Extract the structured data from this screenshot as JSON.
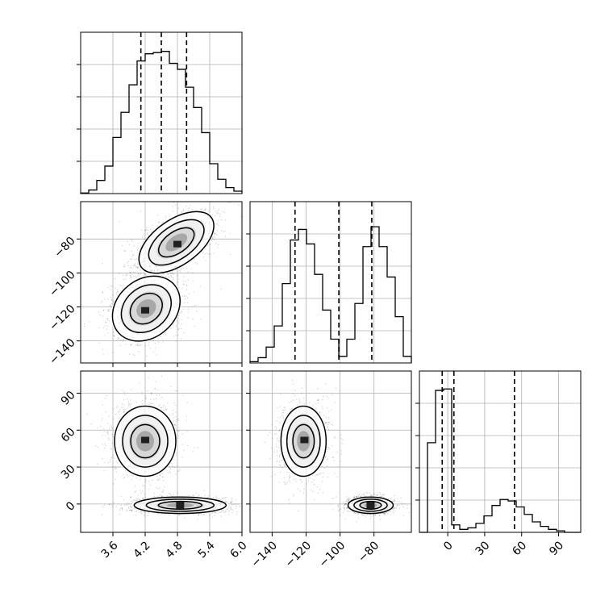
{
  "chart_data": {
    "type": "corner",
    "grid": true,
    "parameters": [
      {
        "ticks": [
          3.6,
          4.2,
          4.8,
          5.4,
          6.0
        ],
        "tick_labels": [
          "3.6",
          "4.2",
          "4.8",
          "5.4",
          "6.0"
        ],
        "range": [
          3.0,
          6.0
        ]
      },
      {
        "ticks": [
          -140,
          -120,
          -100,
          -80
        ],
        "tick_labels": [
          "−140",
          "−120",
          "−100",
          "−80"
        ],
        "range": [
          -153,
          -58
        ]
      },
      {
        "ticks": [
          0,
          30,
          60,
          90
        ],
        "tick_labels": [
          "0",
          "30",
          "60",
          "90"
        ],
        "range": [
          -23,
          108
        ]
      }
    ],
    "histograms": [
      {
        "param": 0,
        "bin_edges": [
          3.0,
          3.15,
          3.3,
          3.45,
          3.6,
          3.75,
          3.9,
          4.05,
          4.2,
          4.35,
          4.5,
          4.65,
          4.8,
          4.95,
          5.1,
          5.25,
          5.4,
          5.55,
          5.7,
          5.85,
          6.0
        ],
        "counts": [
          0.5,
          3,
          11,
          23,
          47,
          68,
          91,
          111,
          117,
          118,
          119,
          109,
          104,
          89,
          72,
          51,
          25,
          12,
          5,
          2
        ],
        "ymax": 135,
        "quantiles": [
          4.12,
          4.5,
          4.97
        ]
      },
      {
        "param": 1,
        "bin_edges": [
          -153,
          -148.25,
          -143.5,
          -138.75,
          -134,
          -129.25,
          -124.5,
          -119.75,
          -115,
          -110.25,
          -105.5,
          -100.75,
          -96,
          -91.25,
          -86.5,
          -81.75,
          -77,
          -72.25,
          -67.5,
          -62.75,
          -58
        ],
        "counts": [
          1,
          4,
          12,
          28,
          60,
          93,
          101,
          90,
          67,
          40,
          18,
          5,
          18,
          45,
          88,
          103,
          88,
          65,
          35,
          5
        ],
        "ymax": 122,
        "quantiles": [
          -126.5,
          -100.7,
          -81.3
        ]
      },
      {
        "param": 2,
        "bin_edges": [
          -23,
          -16.45,
          -9.9,
          -3.35,
          3.2,
          9.75,
          16.3,
          22.85,
          29.4,
          35.95,
          42.5,
          49.05,
          55.6,
          62.15,
          68.7,
          75.25,
          81.8,
          88.35,
          94.9,
          101.45,
          108
        ],
        "counts": [
          0,
          60,
          95,
          96,
          5,
          2,
          3,
          6,
          11,
          18,
          22,
          21,
          17,
          12,
          7,
          4,
          2,
          1,
          0,
          0
        ],
        "ymax": 108,
        "quantiles": [
          -4.5,
          5.0,
          54.2
        ]
      }
    ],
    "scatter_panels": [
      {
        "x_param": 0,
        "y_param": 1,
        "clusters": [
          {
            "center": [
              4.78,
              -82
            ],
            "sd": [
              0.42,
              7
            ],
            "angle_deg": 35,
            "dense_core": [
              4.8,
              -83
            ]
          },
          {
            "center": [
              4.22,
              -121
            ],
            "sd": [
              0.36,
              9
            ],
            "angle_deg": 40,
            "dense_core": [
              4.2,
              -122
            ]
          }
        ]
      },
      {
        "x_param": 0,
        "y_param": 2,
        "clusters": [
          {
            "center": [
              4.2,
              51
            ],
            "sd": [
              0.3,
              15
            ],
            "angle_deg": 0,
            "dense_core": [
              4.2,
              52
            ]
          },
          {
            "center": [
              4.85,
              -1
            ],
            "sd": [
              0.45,
              3.5
            ],
            "angle_deg": 0,
            "dense_core": [
              4.85,
              -1
            ]
          }
        ]
      },
      {
        "x_param": 1,
        "y_param": 2,
        "clusters": [
          {
            "center": [
              -121.5,
              51
            ],
            "sd": [
              7,
              15
            ],
            "angle_deg": 0,
            "dense_core": [
              -121,
              52
            ]
          },
          {
            "center": [
              -82,
              -1
            ],
            "sd": [
              7,
              3.5
            ],
            "angle_deg": 0,
            "dense_core": [
              -82,
              -1
            ]
          }
        ]
      }
    ]
  }
}
